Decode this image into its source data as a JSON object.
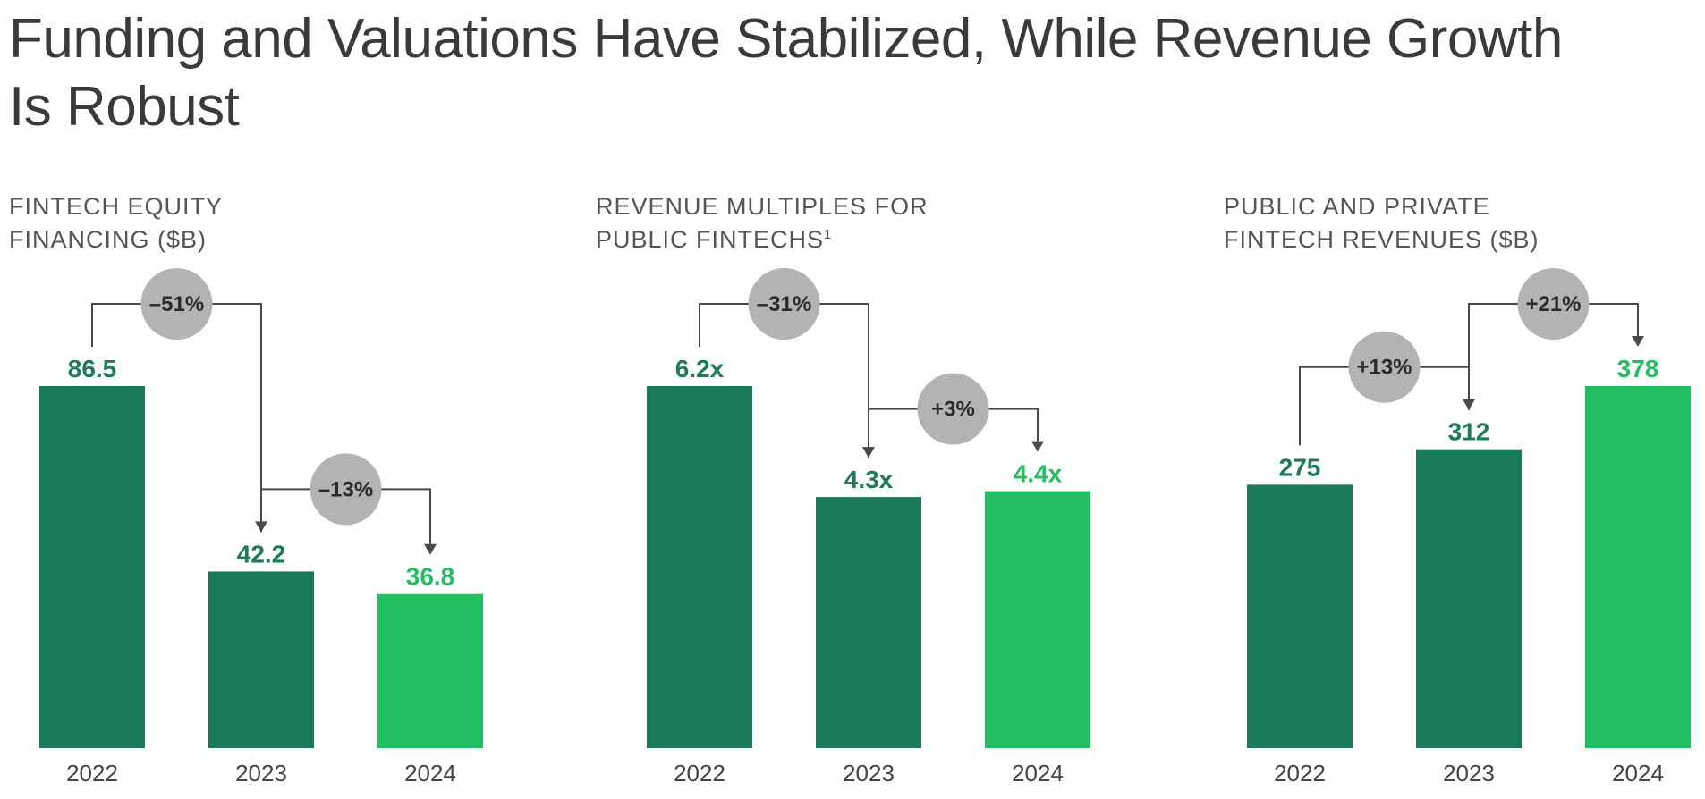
{
  "title": "Funding and Valuations Have Stabilized, While Revenue Growth Is Robust",
  "colors": {
    "dark_green": "#1b7a58",
    "bright_green": "#22bf61",
    "bubble": "#b3b3b3",
    "connector": "#4a4a4a"
  },
  "chart_data": [
    {
      "type": "bar",
      "title_lines": [
        "FINTECH EQUITY",
        "FINANCING ($B)"
      ],
      "footnote": "",
      "categories": [
        "2022",
        "2023",
        "2024"
      ],
      "values": [
        86.5,
        42.2,
        36.8
      ],
      "value_labels": [
        "86.5",
        "42.2",
        "36.8"
      ],
      "highlight": [
        false,
        false,
        true
      ],
      "changes": [
        {
          "from": 0,
          "to": 1,
          "label": "–51%"
        },
        {
          "from": 1,
          "to": 2,
          "label": "–13%"
        }
      ]
    },
    {
      "type": "bar",
      "title_lines": [
        "REVENUE MULTIPLES FOR",
        "PUBLIC FINTECHS"
      ],
      "footnote": "1",
      "categories": [
        "2022",
        "2023",
        "2024"
      ],
      "values": [
        6.2,
        4.3,
        4.4
      ],
      "value_labels": [
        "6.2x",
        "4.3x",
        "4.4x"
      ],
      "highlight": [
        false,
        false,
        true
      ],
      "changes": [
        {
          "from": 0,
          "to": 1,
          "label": "–31%"
        },
        {
          "from": 1,
          "to": 2,
          "label": "+3%"
        }
      ]
    },
    {
      "type": "bar",
      "title_lines": [
        "PUBLIC AND PRIVATE",
        "FINTECH REVENUES ($B)"
      ],
      "footnote": "",
      "categories": [
        "2022",
        "2023",
        "2024"
      ],
      "values": [
        275,
        312,
        378
      ],
      "value_labels": [
        "275",
        "312",
        "378"
      ],
      "highlight": [
        false,
        false,
        true
      ],
      "changes": [
        {
          "from": 0,
          "to": 1,
          "label": "+13%"
        },
        {
          "from": 1,
          "to": 2,
          "label": "+21%"
        }
      ]
    }
  ]
}
